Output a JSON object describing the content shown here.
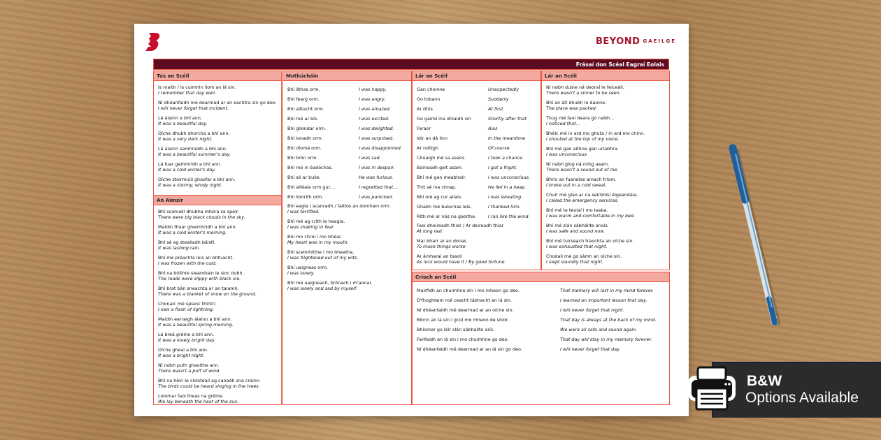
{
  "brand": {
    "name": "BEYOND",
    "sub": "GAEILGE"
  },
  "title": "Frásaí don Scéal Eagraí Eolais",
  "colors": {
    "accent": "#e8553e",
    "header_fill": "#f4a9a0",
    "title_bar": "#5c0b22",
    "brand": "#a5142b"
  },
  "sections": {
    "tus": {
      "heading": "Tús an Scéil",
      "items": [
        [
          "Is maith / Is cuimhin liom an lá sin.",
          "I remember that day well."
        ],
        [
          "Ní dhéanfaidh mé dearmad ar an eachtra sin go deo.",
          "I will never forget that incident."
        ],
        [
          "Lá álainn a bhí ann.",
          "It was a beautiful day."
        ],
        [
          "Oíche dhubh dhorcha a bhí ann.",
          "It was a very dark night."
        ],
        [
          "Lá álainn samhraidh a bhí ann.",
          "It was a beautiful summer's day."
        ],
        [
          "Lá fuar geimhridh a bhí ann.",
          "It was a cold winter's day."
        ],
        [
          "Oíche stoirmiúil ghaofar a bhí ann.",
          "It was a stormy, windy night."
        ]
      ]
    },
    "aimsir": {
      "heading": "An Aimsir",
      "items": [
        [
          "Bhí scamaill dhubha mhóra sa spéir.",
          "There were big black clouds in the sky."
        ],
        [
          "Maidin fhuar gheimhridh a bhí ann.",
          "It was a cold winter's morning."
        ],
        [
          "Bhí sé ag stealladh báistí.",
          "It was lashing rain."
        ],
        [
          "Bhí mé préachta leis an bhfuacht.",
          "I was frozen with the cold."
        ],
        [
          "Bhí na bóithre sleamhain le sioc dubh.",
          "The roads were slippy with black ice."
        ],
        [
          "Bhí brat bán sneachta ar an talamh.",
          "There was a blanket of snow on the ground."
        ],
        [
          "Chonaic mé splanc thintrí.",
          "I saw a flash of lightning."
        ],
        [
          "Maidin earraigh álainn a bhí ann.",
          "It was a beautiful spring morning."
        ],
        [
          "Lá breá gréine a bhí ann.",
          "It was a lovely bright day."
        ],
        [
          "Oíche gheal a bhí ann.",
          "It was a bright night."
        ],
        [
          "Ní raibh puth ghaoithe ann.",
          "There wasn't a puff of wind."
        ],
        [
          "Bhí na héin le cloisteáil ag canadh sna crainn.",
          "The birds could be heard singing in the trees."
        ],
        [
          "Luíomar faoi theas na gréine.",
          "We lay beneath the heat of the sun."
        ]
      ]
    },
    "mothuchain": {
      "heading": "Mothúcháin",
      "rows": [
        [
          "Bhí áthas orm.",
          "I was happy."
        ],
        [
          "Bhí fearg orm.",
          "I was angry."
        ],
        [
          "Bhí alltacht orm.",
          "I was amazed."
        ],
        [
          "Bhí mé ar bís.",
          "I was excited."
        ],
        [
          "Bhí gliondar orm.",
          "I was delighted."
        ],
        [
          "Bhí ionadh orm.",
          "I was surprised."
        ],
        [
          "Bhí díomá orm.",
          "I was disappointed."
        ],
        [
          "Bhí brón orm.",
          "I was sad."
        ],
        [
          "Bhí mé in éadóchas.",
          "I was in despair."
        ],
        [
          "Bhí sé ar buile.",
          "He was furious."
        ],
        [
          "Bhí aiféala orm gur....",
          "I regretted that...."
        ],
        [
          "Bhí líonrith orm.",
          "I was panicked."
        ]
      ],
      "items": [
        [
          "Bhí eagla / scanradh / faitíos an domhain orm.",
          "I was terrified."
        ],
        [
          "Bhí mé ag crith le heagla.",
          "I was shaking in fear."
        ],
        [
          "Bhí mo chroí i mo bhéal.",
          "My heart was in my mouth."
        ],
        [
          "Bhí sceimhlithe i mo bheatha.",
          "I was frightened out of my wits."
        ],
        [
          "Bhí uaigneas orm.",
          "I was lonely."
        ],
        [
          "Bhí mé uaigneach, brónach i m'aonar.",
          "I was lonely and sad by myself."
        ]
      ]
    },
    "lar1": {
      "heading": "Lár an Scéil",
      "rows": [
        [
          "Gan choinne",
          "Unexpectedly"
        ],
        [
          "Go tobann",
          "Suddenly"
        ],
        [
          "Ar dtús",
          "At first"
        ],
        [
          "Go gairid ina dhiaidh sin",
          "Shortly after that"
        ],
        [
          "Faraor",
          "Alas"
        ],
        [
          "Idir an dá linn",
          "In the meantime"
        ],
        [
          "Ar ndóigh",
          "Of course"
        ],
        [
          "Chuaigh mé sa seans.",
          "I took a chance."
        ],
        [
          "Baineadh geit asam.",
          "I got a fright."
        ],
        [
          "Bhí mé gan meabhair.",
          "I was unconscious."
        ],
        [
          "Thit sé ina chnap.",
          "He fell in a heap."
        ],
        [
          "Bhí mé ag cur allais.",
          "I was sweating."
        ],
        [
          "Ghabh mé buíochas leis.",
          "I thanked him."
        ],
        [
          "Rith mé ar nós na gaoithe.",
          "I ran like the wind."
        ]
      ],
      "items": [
        [
          "Faoi dheireadh thiar / Ar deireadh thiar",
          "At long last"
        ],
        [
          "Mar bharr ar an donas",
          "To make things worse"
        ],
        [
          "Ar ámharaí an tsaoil",
          "As luck would have it / By good fortune"
        ]
      ]
    },
    "lar2": {
      "heading": "Lár an Scéil",
      "items": [
        [
          "Ní raibh duine ná deoraí le feiceáil.",
          "There wasn't a sinner to be seen."
        ],
        [
          "Bhí an áit dhubh le daoine.",
          "The place was packed."
        ],
        [
          "Thug mé faoi deara go raibh...",
          "I noticed that..."
        ],
        [
          "Bhéic mé in ard mo ghuta / in ard mo chinn.",
          "I shouted at the top of my voice."
        ],
        [
          "Bhí mé gan aithne gan urlabhra.",
          "I was unconscious."
        ],
        [
          "Ní raibh gíog ná míog asam.",
          "There wasn't a sound out of me."
        ],
        [
          "Bhris an fuarallas amach tríom.",
          "I broke out in a cold sweat."
        ],
        [
          "Chuir mé glao ar na seirbhísí éigeandála.",
          "I called the emergency services."
        ],
        [
          "Bhí mé te teolaí i mo leaba.",
          "I was warm and comfortable in my bed."
        ],
        [
          "Bhí mé slán sábháilte anois.",
          "I was safe and sound now."
        ],
        [
          "Bhí mé tuirseach traochta an oíche sin.",
          "I was exhausted that night."
        ],
        [
          "Chodail mé go sámh an oíche sin.",
          "I slept soundly that night."
        ]
      ]
    },
    "crioch": {
      "heading": "Críoch an Scéil",
      "rows": [
        [
          "Mairfidh an chuimhne sin i mo mheon go deo.",
          "That memory will last in my mind forever."
        ],
        [
          "D'fhoghlaim mé ceacht tábhacht an lá sin.",
          "I learned an important lesson that day."
        ],
        [
          "Ní dhéanfaidh mé dearmad ar an oíche sin.",
          "I will never forget that night."
        ],
        [
          "Bíonn an lá sin i gcúl mo mheon de shíor.",
          "That day is always at the back of my mind."
        ],
        [
          "Bhíomar go léir slán sábháilte arís.",
          "We were all safe and sound again."
        ],
        [
          "Fanfaidh an lá sin i mo chuimhne go deo.",
          "That day will stay in my memory forever."
        ],
        [
          "Ní dhéanfaidh mé dearmad ar an lá sin go deo.",
          "I will never forget that day."
        ]
      ]
    }
  },
  "badge": {
    "line1": "B&W",
    "line2": "Options Available",
    "icon": "printer-icon"
  }
}
